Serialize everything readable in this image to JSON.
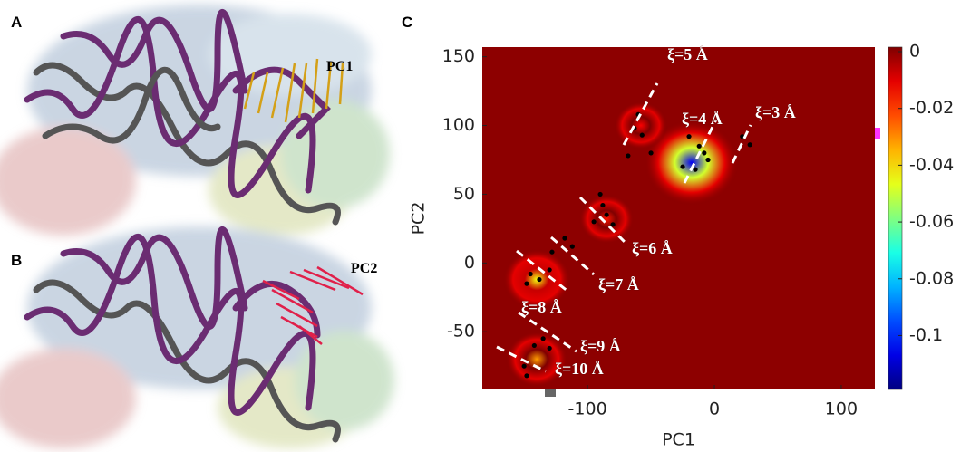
{
  "panels": [
    {
      "label": "A",
      "annotation": "PC1"
    },
    {
      "label": "B",
      "annotation": "PC2"
    }
  ],
  "chart_data": {
    "type": "heatmap",
    "panel_label": "C",
    "xlabel": "PC1",
    "ylabel": "PC2",
    "xlim": [
      -183,
      126.5
    ],
    "ylim": [
      -92,
      157
    ],
    "xticks": [
      -100,
      0,
      100
    ],
    "yticks": [
      -50,
      0,
      50,
      100,
      150
    ],
    "colormap": "jet",
    "colorbar": {
      "lim": [
        -0.119,
        0.0016
      ],
      "ticks": [
        0,
        -0.02,
        -0.04,
        -0.06,
        -0.08,
        -0.1
      ]
    },
    "wells": [
      {
        "x": -18,
        "y": 73,
        "value": -0.105
      },
      {
        "x": -140,
        "y": -12,
        "value": -0.045
      },
      {
        "x": -140,
        "y": -70,
        "value": -0.032
      },
      {
        "x": -85,
        "y": 32,
        "value": -0.016
      },
      {
        "x": -58,
        "y": 100,
        "value": -0.013
      }
    ],
    "points": {
      "x": [
        -60,
        -63,
        -57,
        -50,
        -68,
        -20,
        -12,
        -8,
        -5,
        -25,
        -15,
        22,
        28,
        -90,
        -85,
        -95,
        -80,
        -88,
        -118,
        -128,
        -130,
        -145,
        -138,
        -148,
        -112,
        -135,
        -142,
        -130,
        -150,
        -148
      ],
      "y": [
        108,
        98,
        93,
        80,
        78,
        92,
        85,
        80,
        75,
        70,
        68,
        92,
        86,
        50,
        35,
        30,
        28,
        42,
        18,
        8,
        -5,
        -8,
        -12,
        -15,
        12,
        -55,
        -60,
        -62,
        -75,
        -82
      ]
    },
    "annotations": [
      "ξ=5 Å",
      "ξ=4 Å",
      "ξ=3 Å",
      "ξ=6 Å",
      "ξ=7 Å",
      "ξ=8 Å",
      "ξ=9 Å",
      "ξ=10 Å"
    ]
  }
}
